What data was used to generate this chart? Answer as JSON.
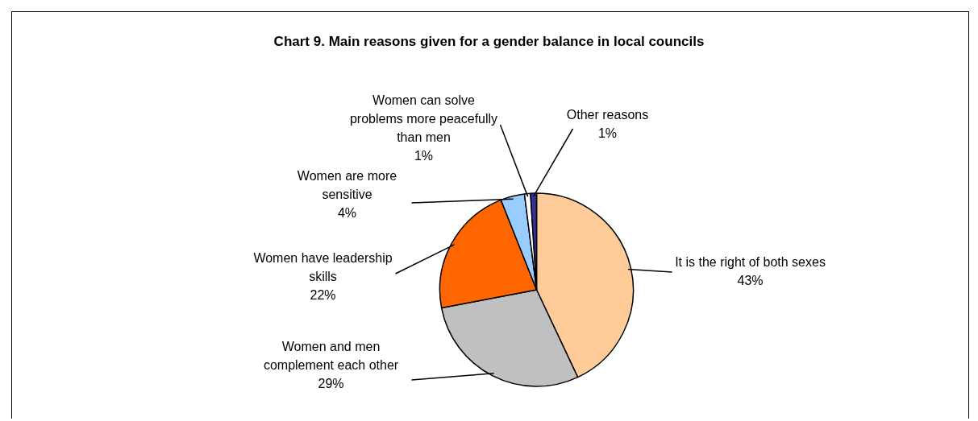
{
  "chart_data": {
    "type": "pie",
    "title": "Chart 9.  Main reasons given for a gender balance in local councils",
    "categories": [
      "It is the right of both sexes",
      "Women and men complement each other",
      "Women have leadership skills",
      "Women are more sensitive",
      "Women can solve problems more peacefully than men",
      "Other reasons"
    ],
    "values": [
      43,
      29,
      22,
      4,
      1,
      1
    ],
    "value_labels": [
      "43%",
      "29%",
      "22%",
      "4%",
      "1%",
      "1%"
    ],
    "colors": [
      "#ffcc99",
      "#c0c0c0",
      "#ff6600",
      "#99ccff",
      "#ffffff",
      "#333399"
    ],
    "legend": false
  }
}
